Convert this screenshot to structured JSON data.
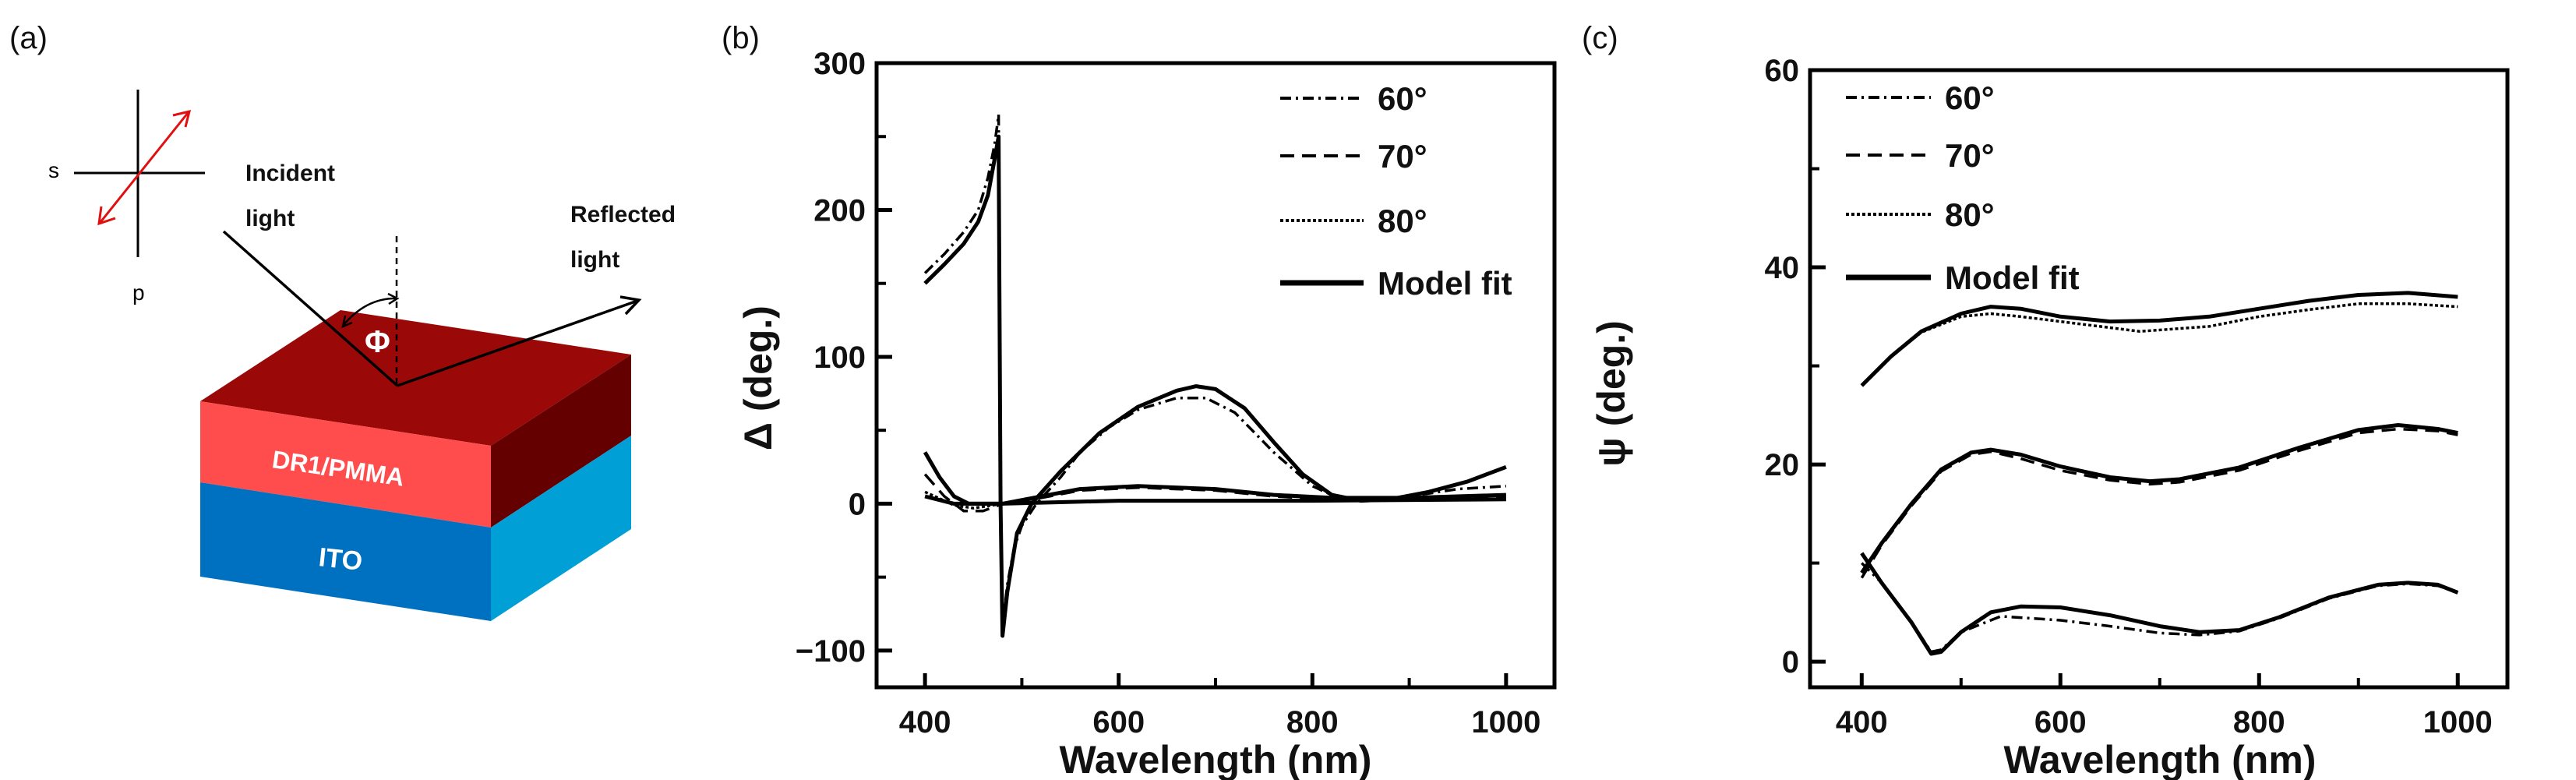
{
  "panel_labels": {
    "a": "(a)",
    "b": "(b)",
    "c": "(c)"
  },
  "diagram": {
    "s_label": "s",
    "p_label": "p",
    "incident_label_1": "Incident",
    "incident_label_2": "light",
    "reflected_label_1": "Reflected",
    "reflected_label_2": "light",
    "angle_label": "Φ",
    "layer_top": "DR1/PMMA",
    "layer_bottom": "ITO",
    "colors": {
      "top_face": "#9a0808",
      "dr1_front": "#ff4d4d",
      "dr1_side": "#650000",
      "ito_front": "#0070c0",
      "ito_side": "#009fd6",
      "polarization_arrow": "#e01010"
    }
  },
  "chart_data": [
    {
      "type": "line",
      "panel": "b",
      "xlabel": "Wavelength (nm)",
      "ylabel": "Δ (deg.)",
      "xlim": [
        350,
        1050
      ],
      "ylim": [
        -125,
        300
      ],
      "xticks": [
        400,
        600,
        800,
        1000
      ],
      "xminor": [
        500,
        700,
        900
      ],
      "yticks": [
        -100,
        0,
        100,
        200,
        300
      ],
      "yminor": [
        -50,
        50,
        150,
        250
      ],
      "xtick_labels": [
        "400",
        "600",
        "800",
        "1000"
      ],
      "ytick_labels": [
        "−100",
        "0",
        "100",
        "200",
        "300"
      ],
      "grid": false,
      "legend_position": "top-right",
      "legend": [
        {
          "label": "60°",
          "style": "dash-dot"
        },
        {
          "label": "70°",
          "style": "dashed"
        },
        {
          "label": "80°",
          "style": "dotted"
        },
        {
          "label": "Model fit",
          "style": "solid"
        }
      ],
      "series": [
        {
          "name": "60°",
          "style": "dash-dot",
          "points": [
            [
              400,
              157
            ],
            [
              420,
              170
            ],
            [
              440,
              185
            ],
            [
              455,
              200
            ],
            [
              465,
              222
            ],
            [
              472,
              245
            ],
            [
              476,
              265
            ],
            [
              478,
              0
            ],
            [
              480,
              -85
            ],
            [
              485,
              -55
            ],
            [
              492,
              -30
            ],
            [
              500,
              -15
            ],
            [
              515,
              0
            ],
            [
              540,
              18
            ],
            [
              560,
              35
            ],
            [
              590,
              52
            ],
            [
              620,
              64
            ],
            [
              660,
              72
            ],
            [
              690,
              72
            ],
            [
              720,
              62
            ],
            [
              760,
              35
            ],
            [
              800,
              12
            ],
            [
              830,
              3
            ],
            [
              880,
              3
            ],
            [
              950,
              10
            ],
            [
              1000,
              12
            ]
          ]
        },
        {
          "name": "70°",
          "style": "dashed",
          "points": [
            [
              400,
              20
            ],
            [
              420,
              5
            ],
            [
              440,
              -5
            ],
            [
              460,
              -5
            ],
            [
              480,
              0
            ],
            [
              520,
              4
            ],
            [
              560,
              9
            ],
            [
              620,
              11
            ],
            [
              700,
              9
            ],
            [
              760,
              5
            ],
            [
              820,
              3
            ],
            [
              900,
              4
            ],
            [
              1000,
              5
            ]
          ]
        },
        {
          "name": "80°",
          "style": "dotted",
          "points": [
            [
              400,
              8
            ],
            [
              430,
              -1
            ],
            [
              450,
              -3
            ],
            [
              480,
              0
            ],
            [
              600,
              2
            ],
            [
              800,
              2
            ],
            [
              1000,
              3
            ]
          ]
        },
        {
          "name": "Model fit",
          "style": "solid",
          "points": [
            [
              400,
              150
            ],
            [
              420,
              163
            ],
            [
              440,
              177
            ],
            [
              455,
              192
            ],
            [
              465,
              210
            ],
            [
              472,
              235
            ],
            [
              476,
              250
            ],
            [
              478,
              0
            ],
            [
              480,
              -90
            ],
            [
              485,
              -60
            ],
            [
              495,
              -20
            ],
            [
              510,
              0
            ],
            [
              540,
              22
            ],
            [
              580,
              48
            ],
            [
              620,
              66
            ],
            [
              660,
              77
            ],
            [
              680,
              80
            ],
            [
              700,
              78
            ],
            [
              730,
              65
            ],
            [
              760,
              42
            ],
            [
              790,
              20
            ],
            [
              820,
              6
            ],
            [
              850,
              2
            ],
            [
              880,
              3
            ],
            [
              920,
              8
            ],
            [
              960,
              15
            ],
            [
              1000,
              25
            ]
          ]
        },
        {
          "name": "Model fit",
          "style": "solid",
          "points": [
            [
              400,
              35
            ],
            [
              415,
              18
            ],
            [
              430,
              5
            ],
            [
              445,
              0
            ],
            [
              480,
              0
            ],
            [
              520,
              5
            ],
            [
              560,
              10
            ],
            [
              620,
              12
            ],
            [
              700,
              10
            ],
            [
              760,
              6
            ],
            [
              820,
              4
            ],
            [
              900,
              4
            ],
            [
              1000,
              6
            ]
          ]
        },
        {
          "name": "Model fit",
          "style": "solid",
          "points": [
            [
              400,
              5
            ],
            [
              430,
              0
            ],
            [
              480,
              0
            ],
            [
              600,
              2
            ],
            [
              800,
              2
            ],
            [
              1000,
              3
            ]
          ]
        }
      ]
    },
    {
      "type": "line",
      "panel": "c",
      "xlabel": "Wavelength (nm)",
      "ylabel": "ψ (deg.)",
      "xlim": [
        348,
        1050
      ],
      "ylim": [
        -2.6,
        60
      ],
      "xticks": [
        400,
        600,
        800,
        1000
      ],
      "xminor": [
        500,
        700,
        900
      ],
      "yticks": [
        0,
        20,
        40,
        60
      ],
      "yminor": [
        10,
        30,
        50
      ],
      "xtick_labels": [
        "400",
        "600",
        "800",
        "1000"
      ],
      "ytick_labels": [
        "0",
        "20",
        "40",
        "60"
      ],
      "grid": false,
      "legend_position": "top-left",
      "legend": [
        {
          "label": "60°",
          "style": "dash-dot"
        },
        {
          "label": "70°",
          "style": "dashed"
        },
        {
          "label": "80°",
          "style": "dotted"
        },
        {
          "label": "Model fit",
          "style": "solid"
        }
      ],
      "series": [
        {
          "name": "60°",
          "style": "dash-dot",
          "points": [
            [
              400,
              10
            ],
            [
              420,
              8
            ],
            [
              450,
              4
            ],
            [
              470,
              1
            ],
            [
              480,
              1.2
            ],
            [
              500,
              3
            ],
            [
              540,
              4.6
            ],
            [
              600,
              4.2
            ],
            [
              650,
              3.6
            ],
            [
              700,
              2.9
            ],
            [
              740,
              2.7
            ],
            [
              780,
              3.1
            ],
            [
              820,
              4.4
            ],
            [
              870,
              6.4
            ],
            [
              920,
              7.7
            ],
            [
              950,
              7.9
            ],
            [
              980,
              7.7
            ],
            [
              1000,
              7
            ]
          ]
        },
        {
          "name": "70°",
          "style": "dashed",
          "points": [
            [
              400,
              8.5
            ],
            [
              420,
              11.8
            ],
            [
              450,
              15.8
            ],
            [
              480,
              19.3
            ],
            [
              510,
              21
            ],
            [
              530,
              21.3
            ],
            [
              560,
              20.6
            ],
            [
              600,
              19.4
            ],
            [
              650,
              18.4
            ],
            [
              690,
              18
            ],
            [
              720,
              18.2
            ],
            [
              780,
              19.4
            ],
            [
              840,
              21.4
            ],
            [
              900,
              23.2
            ],
            [
              940,
              23.6
            ],
            [
              980,
              23.4
            ],
            [
              1000,
              23
            ]
          ]
        },
        {
          "name": "80°",
          "style": "dotted",
          "points": [
            [
              400,
              28
            ],
            [
              430,
              31
            ],
            [
              460,
              33.4
            ],
            [
              500,
              35
            ],
            [
              530,
              35.3
            ],
            [
              560,
              35
            ],
            [
              600,
              34.5
            ],
            [
              680,
              33.5
            ],
            [
              750,
              34
            ],
            [
              800,
              35
            ],
            [
              850,
              35.7
            ],
            [
              900,
              36.3
            ],
            [
              950,
              36.3
            ],
            [
              1000,
              36
            ]
          ]
        },
        {
          "name": "Model fit",
          "style": "solid",
          "points": [
            [
              400,
              11
            ],
            [
              420,
              8
            ],
            [
              450,
              4
            ],
            [
              470,
              0.8
            ],
            [
              480,
              1
            ],
            [
              500,
              3
            ],
            [
              530,
              5
            ],
            [
              560,
              5.6
            ],
            [
              600,
              5.5
            ],
            [
              650,
              4.7
            ],
            [
              700,
              3.6
            ],
            [
              740,
              3
            ],
            [
              780,
              3.2
            ],
            [
              820,
              4.5
            ],
            [
              870,
              6.5
            ],
            [
              920,
              7.8
            ],
            [
              950,
              8
            ],
            [
              980,
              7.8
            ],
            [
              1000,
              7
            ]
          ]
        },
        {
          "name": "Model fit",
          "style": "solid",
          "points": [
            [
              400,
              9
            ],
            [
              420,
              12
            ],
            [
              450,
              16
            ],
            [
              480,
              19.5
            ],
            [
              510,
              21.2
            ],
            [
              530,
              21.5
            ],
            [
              560,
              21
            ],
            [
              600,
              19.8
            ],
            [
              650,
              18.7
            ],
            [
              690,
              18.3
            ],
            [
              720,
              18.5
            ],
            [
              780,
              19.7
            ],
            [
              840,
              21.7
            ],
            [
              900,
              23.5
            ],
            [
              940,
              24
            ],
            [
              980,
              23.6
            ],
            [
              1000,
              23.2
            ]
          ]
        },
        {
          "name": "Model fit",
          "style": "solid",
          "points": [
            [
              400,
              28
            ],
            [
              430,
              31
            ],
            [
              460,
              33.5
            ],
            [
              500,
              35.3
            ],
            [
              530,
              36
            ],
            [
              560,
              35.8
            ],
            [
              600,
              35
            ],
            [
              650,
              34.5
            ],
            [
              700,
              34.6
            ],
            [
              750,
              35
            ],
            [
              800,
              35.8
            ],
            [
              850,
              36.6
            ],
            [
              900,
              37.2
            ],
            [
              950,
              37.4
            ],
            [
              1000,
              37
            ]
          ]
        }
      ]
    }
  ]
}
